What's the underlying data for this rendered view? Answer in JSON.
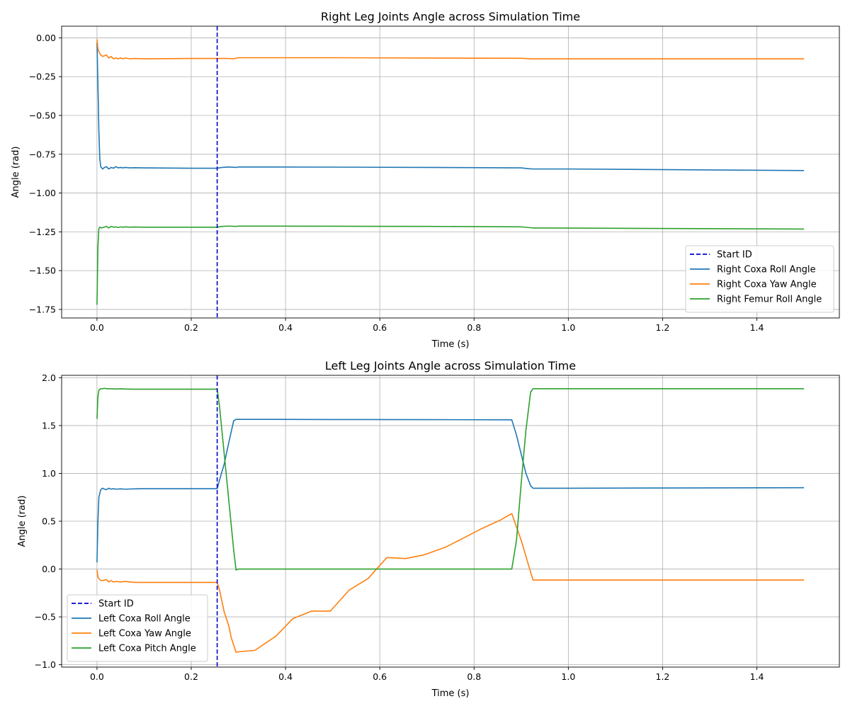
{
  "chart_data": [
    {
      "type": "line",
      "title": "Right Leg Joints Angle across Simulation Time",
      "xlabel": "Time (s)",
      "ylabel": "Angle (rad)",
      "xlim": [
        -0.075,
        1.575
      ],
      "ylim": [
        -1.805,
        0.075
      ],
      "xticks": [
        0.0,
        0.2,
        0.4,
        0.6,
        0.8,
        1.0,
        1.2,
        1.4
      ],
      "xtick_labels": [
        "0.0",
        "0.2",
        "0.4",
        "0.6",
        "0.8",
        "1.0",
        "1.2",
        "1.4"
      ],
      "yticks": [
        0.0,
        -0.25,
        -0.5,
        -0.75,
        -1.0,
        -1.25,
        -1.5,
        -1.75
      ],
      "ytick_labels": [
        "0.00",
        "−0.25",
        "−0.50",
        "−0.75",
        "−1.00",
        "−1.25",
        "−1.50",
        "−1.75"
      ],
      "grid": true,
      "legend_position": "lower-right",
      "vline": {
        "name": "Start ID",
        "x": 0.255,
        "color": "#0000cc",
        "style": "dashed"
      },
      "series": [
        {
          "name": "Right Coxa Roll Angle",
          "color": "#1f77b4",
          "x": [
            0,
            0.002,
            0.004,
            0.006,
            0.008,
            0.012,
            0.016,
            0.02,
            0.025,
            0.03,
            0.035,
            0.04,
            0.045,
            0.05,
            0.055,
            0.06,
            0.07,
            0.08,
            0.1,
            0.2,
            0.255,
            0.265,
            0.28,
            0.295,
            0.3,
            0.5,
            0.7,
            0.9,
            0.915,
            0.925,
            1.0,
            1.5
          ],
          "y": [
            -0.03,
            -0.3,
            -0.6,
            -0.78,
            -0.83,
            -0.845,
            -0.835,
            -0.83,
            -0.845,
            -0.835,
            -0.84,
            -0.83,
            -0.838,
            -0.835,
            -0.838,
            -0.835,
            -0.838,
            -0.837,
            -0.838,
            -0.84,
            -0.84,
            -0.835,
            -0.832,
            -0.835,
            -0.832,
            -0.833,
            -0.835,
            -0.838,
            -0.843,
            -0.845,
            -0.845,
            -0.855
          ]
        },
        {
          "name": "Right Coxa Yaw Angle",
          "color": "#ff7f0e",
          "x": [
            0,
            0.002,
            0.004,
            0.008,
            0.012,
            0.016,
            0.02,
            0.025,
            0.03,
            0.035,
            0.04,
            0.045,
            0.05,
            0.055,
            0.06,
            0.07,
            0.08,
            0.1,
            0.2,
            0.255,
            0.265,
            0.28,
            0.29,
            0.3,
            0.5,
            0.7,
            0.9,
            0.92,
            1.0,
            1.5
          ],
          "y": [
            -0.01,
            -0.07,
            -0.09,
            -0.11,
            -0.12,
            -0.115,
            -0.11,
            -0.13,
            -0.12,
            -0.135,
            -0.13,
            -0.135,
            -0.13,
            -0.135,
            -0.13,
            -0.135,
            -0.133,
            -0.135,
            -0.133,
            -0.133,
            -0.133,
            -0.133,
            -0.135,
            -0.128,
            -0.128,
            -0.13,
            -0.132,
            -0.135,
            -0.135,
            -0.135
          ]
        },
        {
          "name": "Right Femur Roll Angle",
          "color": "#2ca02c",
          "x": [
            0,
            0.002,
            0.004,
            0.006,
            0.01,
            0.015,
            0.02,
            0.025,
            0.03,
            0.035,
            0.04,
            0.045,
            0.05,
            0.055,
            0.06,
            0.07,
            0.08,
            0.1,
            0.2,
            0.255,
            0.265,
            0.28,
            0.295,
            0.3,
            0.5,
            0.7,
            0.9,
            0.915,
            0.925,
            1.0,
            1.5
          ],
          "y": [
            -1.72,
            -1.35,
            -1.23,
            -1.22,
            -1.225,
            -1.22,
            -1.215,
            -1.225,
            -1.215,
            -1.22,
            -1.218,
            -1.222,
            -1.218,
            -1.22,
            -1.218,
            -1.22,
            -1.219,
            -1.22,
            -1.22,
            -1.22,
            -1.215,
            -1.213,
            -1.215,
            -1.213,
            -1.214,
            -1.215,
            -1.218,
            -1.222,
            -1.225,
            -1.226,
            -1.232
          ]
        }
      ]
    },
    {
      "type": "line",
      "title": "Left Leg Joints Angle across Simulation Time",
      "xlabel": "Time (s)",
      "ylabel": "Angle (rad)",
      "xlim": [
        -0.075,
        1.575
      ],
      "ylim": [
        -1.025,
        2.025
      ],
      "xticks": [
        0.0,
        0.2,
        0.4,
        0.6,
        0.8,
        1.0,
        1.2,
        1.4
      ],
      "xtick_labels": [
        "0.0",
        "0.2",
        "0.4",
        "0.6",
        "0.8",
        "1.0",
        "1.2",
        "1.4"
      ],
      "yticks": [
        2.0,
        1.5,
        1.0,
        0.5,
        0.0,
        -0.5,
        -1.0
      ],
      "ytick_labels": [
        "2.0",
        "1.5",
        "1.0",
        "0.5",
        "0.0",
        "−0.5",
        "−1.0"
      ],
      "grid": true,
      "legend_position": "lower-left",
      "vline": {
        "name": "Start ID",
        "x": 0.255,
        "color": "#0000cc",
        "style": "dashed"
      },
      "series": [
        {
          "name": "Left Coxa Roll Angle",
          "color": "#1f77b4",
          "x": [
            0,
            0.002,
            0.004,
            0.008,
            0.012,
            0.016,
            0.02,
            0.025,
            0.03,
            0.035,
            0.04,
            0.05,
            0.06,
            0.08,
            0.1,
            0.2,
            0.255,
            0.26,
            0.27,
            0.28,
            0.29,
            0.295,
            0.3,
            0.5,
            0.7,
            0.88,
            0.89,
            0.9,
            0.91,
            0.92,
            0.925,
            1.0,
            1.5
          ],
          "y": [
            0.07,
            0.5,
            0.75,
            0.83,
            0.845,
            0.835,
            0.83,
            0.845,
            0.835,
            0.84,
            0.835,
            0.838,
            0.835,
            0.838,
            0.84,
            0.84,
            0.84,
            0.93,
            1.1,
            1.33,
            1.55,
            1.565,
            1.565,
            1.563,
            1.562,
            1.56,
            1.4,
            1.2,
            1.0,
            0.87,
            0.845,
            0.845,
            0.85
          ]
        },
        {
          "name": "Left Coxa Yaw Angle",
          "color": "#ff7f0e",
          "x": [
            0,
            0.002,
            0.004,
            0.008,
            0.012,
            0.016,
            0.02,
            0.025,
            0.03,
            0.035,
            0.04,
            0.05,
            0.06,
            0.08,
            0.1,
            0.2,
            0.255,
            0.26,
            0.27,
            0.28,
            0.285,
            0.295,
            0.3,
            0.335,
            0.38,
            0.415,
            0.455,
            0.495,
            0.535,
            0.575,
            0.615,
            0.655,
            0.695,
            0.74,
            0.78,
            0.815,
            0.855,
            0.88,
            0.9,
            0.915,
            0.925,
            1.0,
            1.5
          ],
          "y": [
            -0.01,
            -0.08,
            -0.1,
            -0.12,
            -0.12,
            -0.115,
            -0.11,
            -0.135,
            -0.12,
            -0.135,
            -0.13,
            -0.135,
            -0.13,
            -0.14,
            -0.14,
            -0.14,
            -0.14,
            -0.22,
            -0.45,
            -0.6,
            -0.72,
            -0.87,
            -0.865,
            -0.85,
            -0.7,
            -0.52,
            -0.44,
            -0.44,
            -0.22,
            -0.1,
            0.12,
            0.11,
            0.15,
            0.23,
            0.33,
            0.42,
            0.51,
            0.58,
            0.3,
            0.05,
            -0.115,
            -0.115,
            -0.115
          ]
        },
        {
          "name": "Left Coxa Pitch Angle",
          "color": "#2ca02c",
          "x": [
            0,
            0.002,
            0.004,
            0.008,
            0.012,
            0.016,
            0.02,
            0.03,
            0.04,
            0.05,
            0.06,
            0.08,
            0.1,
            0.2,
            0.255,
            0.26,
            0.27,
            0.28,
            0.29,
            0.295,
            0.3,
            0.5,
            0.7,
            0.88,
            0.89,
            0.9,
            0.91,
            0.92,
            0.925,
            1.0,
            1.5
          ],
          "y": [
            1.57,
            1.8,
            1.87,
            1.885,
            1.885,
            1.89,
            1.885,
            1.885,
            1.882,
            1.884,
            1.882,
            1.88,
            1.88,
            1.88,
            1.88,
            1.7,
            1.2,
            0.7,
            0.2,
            -0.01,
            0.0,
            0.0,
            0.0,
            0.0,
            0.3,
            0.9,
            1.45,
            1.85,
            1.885,
            1.885,
            1.885
          ]
        }
      ]
    }
  ]
}
